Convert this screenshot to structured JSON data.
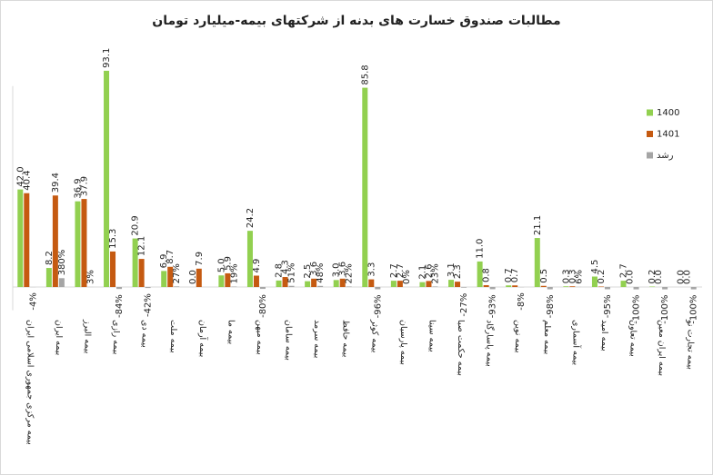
{
  "chart_data": {
    "type": "bar",
    "title": "مطالبات صندوق خسارت های بدنه از شرکتهای بیمه-میلیارد تومان",
    "categories": [
      "بیمه مرکزی جمهوری اسلامی ایران",
      "بیمه ایران",
      "بیمه البرز",
      "بیمه رازی",
      "بیمه دی",
      "بیمه ملت",
      "بیمه آرمان",
      "بیمه ما",
      "بیمه میهن",
      "بیمه سامان",
      "بیمه سرمد",
      "بیمه حافظ",
      "بیمه کوثر",
      "بیمه پارسیان",
      "بیمه سینا",
      "بیمه حکمت صبا",
      "بیمه پاسارگاد",
      "بیمه نوین",
      "بیمه معلم",
      "بیمه آسماری",
      "بیمه امید",
      "بیمه تعاون",
      "بیمه ایران معین",
      "بیمه تجارت نو"
    ],
    "series": [
      {
        "name": "1400",
        "color": "#92d050",
        "values": [
          42.0,
          8.2,
          36.9,
          93.1,
          20.9,
          6.9,
          0.0,
          5.0,
          24.2,
          2.8,
          2.5,
          3.0,
          85.8,
          2.7,
          2.1,
          3.1,
          11.0,
          0.7,
          21.1,
          0.3,
          4.5,
          2.7,
          0.2,
          0.0
        ],
        "value_labels": [
          "42.0",
          "8.2",
          "36.9",
          "93.1",
          "20.9",
          "6.9",
          "0.0",
          "5.0",
          "24.2",
          "2.8",
          "2.5",
          "3.0",
          "85.8",
          "2.7",
          "2.1",
          "3.1",
          "11.0",
          "0.7",
          "21.1",
          "0.3",
          "4.5",
          "2.7",
          "0.2",
          "0.0"
        ]
      },
      {
        "name": "1401",
        "color": "#c55a11",
        "values": [
          40.4,
          39.4,
          37.9,
          15.3,
          12.1,
          8.7,
          7.9,
          5.9,
          4.9,
          4.3,
          3.6,
          3.6,
          3.3,
          2.7,
          2.6,
          2.3,
          0.8,
          0.7,
          0.5,
          0.3,
          0.2,
          0.0,
          0.0,
          0.0
        ],
        "value_labels": [
          "40.4",
          "39.4",
          "37.9",
          "15.3",
          "12.1",
          "8.7",
          "7.9",
          "5.9",
          "4.9",
          "4.3",
          "3.6",
          "3.6",
          "3.3",
          "2.7",
          "2.6",
          "2.3",
          "0.8",
          "0.7",
          "0.5",
          "0.3",
          "0.2",
          "0.0",
          "0.0",
          "0.0"
        ]
      },
      {
        "name": "رشد",
        "color": "#a5a5a5",
        "values": [
          -0.04,
          3.8,
          0.03,
          -0.84,
          -0.42,
          0.27,
          null,
          0.19,
          -0.8,
          0.51,
          0.48,
          0.22,
          -0.96,
          0.0,
          0.23,
          -0.27,
          -0.93,
          -0.08,
          -0.98,
          0.06,
          -0.95,
          -1.0,
          -1.0,
          -1.0
        ],
        "value_labels": [
          "-4%",
          "380%",
          "3%",
          "-84%",
          "-42%",
          "27%",
          null,
          "19%",
          "-80%",
          "51%",
          "48%",
          "22%",
          "-96%",
          "0%",
          "23%",
          "-27%",
          "-93%",
          "-8%",
          "-98%",
          "6%",
          "-95%",
          "-100%",
          "-100%",
          "-100%"
        ]
      }
    ],
    "ylim": [
      -10,
      110
    ],
    "legend": "right"
  }
}
